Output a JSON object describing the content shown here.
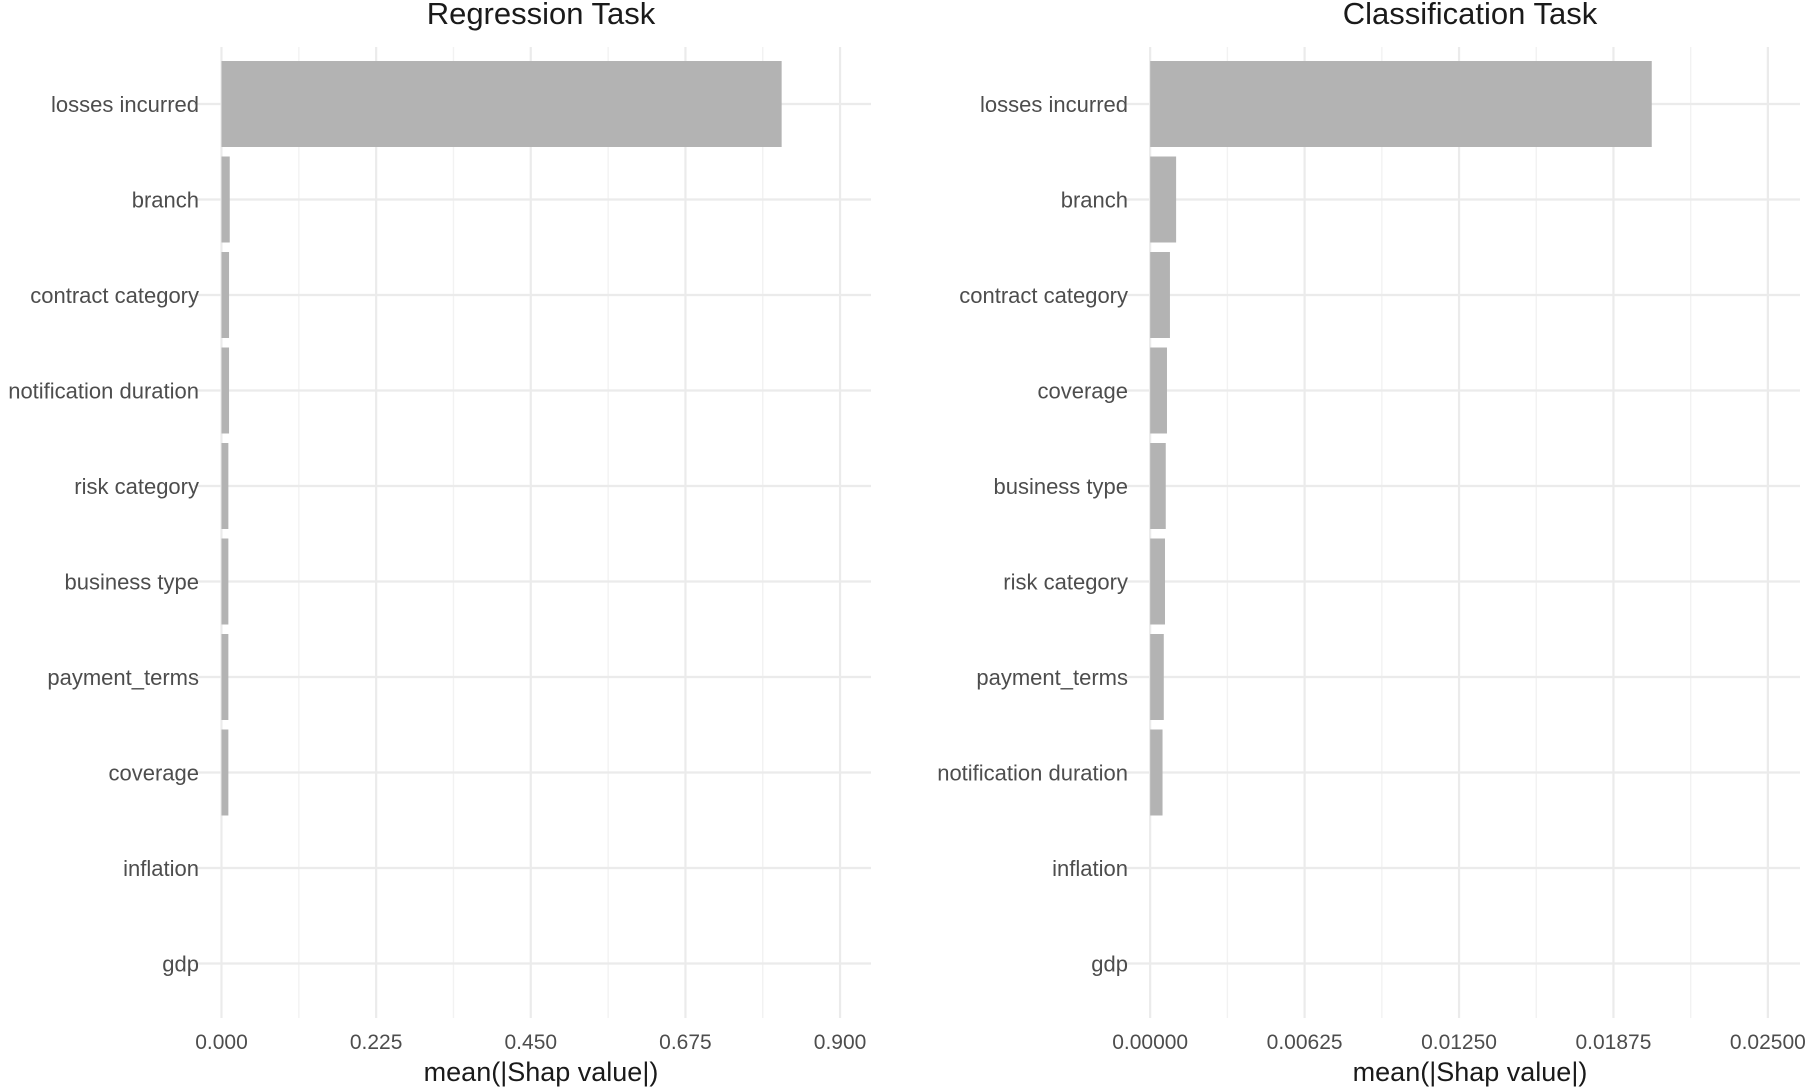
{
  "chart_data": [
    {
      "type": "bar",
      "orientation": "horizontal",
      "title": "Regression Task",
      "xlabel": "mean(|Shap value|)",
      "ylabel": "",
      "categories": [
        "losses incurred",
        "branch",
        "contract category",
        "notification duration",
        "risk category",
        "business type",
        "payment_terms",
        "coverage",
        "inflation",
        "gdp"
      ],
      "values": [
        0.815,
        0.012,
        0.011,
        0.011,
        0.01,
        0.01,
        0.01,
        0.01,
        0.0,
        0.0
      ],
      "xlim": [
        -0.04,
        0.945
      ],
      "xticks": [
        0.0,
        0.225,
        0.45,
        0.675,
        0.9
      ],
      "xtick_labels": [
        "0.000",
        "0.225",
        "0.450",
        "0.675",
        "0.900"
      ],
      "grid": true,
      "bar_color": "#b3b3b3"
    },
    {
      "type": "bar",
      "orientation": "horizontal",
      "title": "Classification Task",
      "xlabel": "mean(|Shap value|)",
      "ylabel": "",
      "categories": [
        "losses incurred",
        "branch",
        "contract category",
        "coverage",
        "business type",
        "risk category",
        "payment_terms",
        "notification duration",
        "inflation",
        "gdp"
      ],
      "values": [
        0.0203,
        0.00105,
        0.0008,
        0.00068,
        0.00063,
        0.0006,
        0.00055,
        0.0005,
        0.0,
        0.0
      ],
      "xlim": [
        -0.0011,
        0.0263
      ],
      "xticks": [
        0.0,
        0.00625,
        0.0125,
        0.01875,
        0.025
      ],
      "xtick_labels": [
        "0.00000",
        "0.00625",
        "0.01250",
        "0.01875",
        "0.02500"
      ],
      "grid": true,
      "bar_color": "#b3b3b3"
    }
  ]
}
